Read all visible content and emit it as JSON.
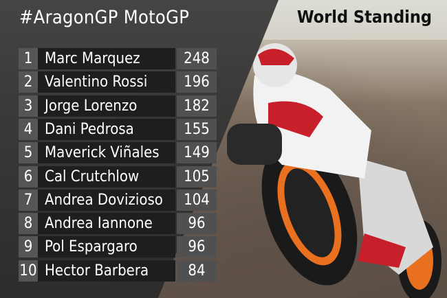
{
  "header": {
    "title": "#AragonGP  MotoGP",
    "subtitle": "World Standing"
  },
  "standings": [
    {
      "rank": "1",
      "rider": "Marc Marquez",
      "points": "248"
    },
    {
      "rank": "2",
      "rider": "Valentino Rossi",
      "points": "196"
    },
    {
      "rank": "3",
      "rider": "Jorge Lorenzo",
      "points": "182"
    },
    {
      "rank": "4",
      "rider": "Dani Pedrosa",
      "points": "155"
    },
    {
      "rank": "5",
      "rider": "Maverick Viñales",
      "points": "149"
    },
    {
      "rank": "6",
      "rider": "Cal Crutchlow",
      "points": "105"
    },
    {
      "rank": "7",
      "rider": "Andrea Dovizioso",
      "points": "104"
    },
    {
      "rank": "8",
      "rider": "Andrea Iannone",
      "points": "96"
    },
    {
      "rank": "9",
      "rider": "Pol Espargaro",
      "points": "96"
    },
    {
      "rank": "10",
      "rider": "Hector Barbera",
      "points": "84"
    }
  ]
}
